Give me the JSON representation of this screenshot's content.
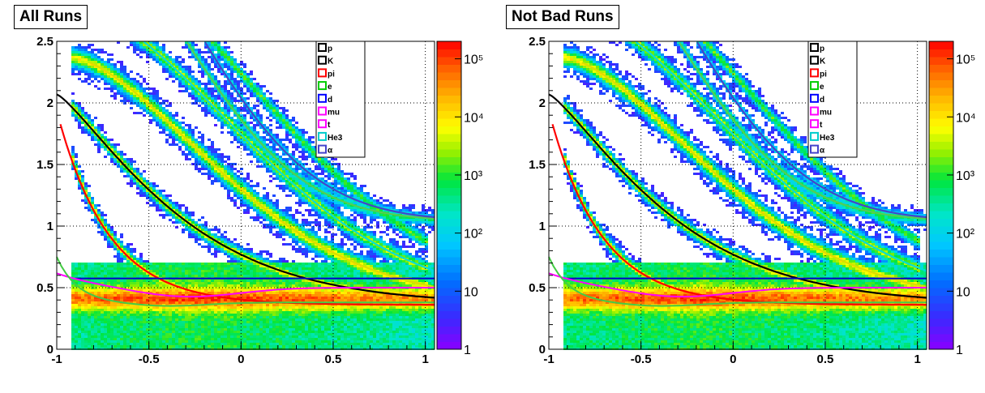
{
  "colors": {
    "p": "#000000",
    "K": "#000000",
    "pi": "#ff0000",
    "e": "#00cc00",
    "d": "#0000ff",
    "mu": "#ff00ff",
    "t": "#ff00ff",
    "He3": "#00cccc",
    "alpha": "#4444cc"
  },
  "chart_data": [
    {
      "type": "heatmap",
      "title": "All Runs",
      "xlim": [
        -1,
        1.05
      ],
      "ylim": [
        0,
        2.5
      ],
      "x_ticks": [
        "-1",
        "-0.5",
        "0",
        "0.5",
        "1"
      ],
      "y_ticks": [
        "0",
        "0.5",
        "1",
        "1.5",
        "2",
        "2.5"
      ],
      "z_log": true,
      "z_range": [
        1,
        200000
      ],
      "z_ticks": [
        "1",
        "10",
        "10²",
        "10³",
        "10⁴",
        "10⁵"
      ],
      "grid": true,
      "legend_placement": "top-right",
      "legend": [
        "p",
        "K",
        "pi",
        "e",
        "d",
        "mu",
        "t",
        "He3",
        "α"
      ]
    },
    {
      "type": "heatmap",
      "title": "Not Bad Runs",
      "xlim": [
        -1,
        1.05
      ],
      "ylim": [
        0,
        2.5
      ],
      "x_ticks": [
        "-1",
        "-0.5",
        "0",
        "0.5",
        "1"
      ],
      "y_ticks": [
        "0",
        "0.5",
        "1",
        "1.5",
        "2",
        "2.5"
      ],
      "z_log": true,
      "z_range": [
        1,
        200000
      ],
      "z_ticks": [
        "1",
        "10",
        "10²",
        "10³",
        "10⁴",
        "10⁵"
      ],
      "grid": true,
      "legend_placement": "top-right",
      "legend": [
        "p",
        "K",
        "pi",
        "e",
        "d",
        "mu",
        "t",
        "He3",
        "α"
      ]
    }
  ]
}
